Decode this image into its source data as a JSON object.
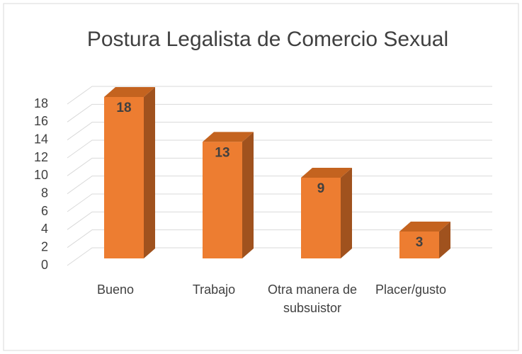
{
  "chart_data": {
    "type": "bar",
    "title": "Postura Legalista de Comercio Sexual",
    "categories": [
      "Bueno",
      "Trabajo",
      "Otra manera de subsuistor",
      "Placer/gusto"
    ],
    "values": [
      18,
      13,
      9,
      3
    ],
    "color": "#ed7d31",
    "ylim": [
      0,
      18
    ],
    "yticks": [
      0,
      2,
      4,
      6,
      8,
      10,
      12,
      14,
      16,
      18
    ],
    "grid": true
  }
}
